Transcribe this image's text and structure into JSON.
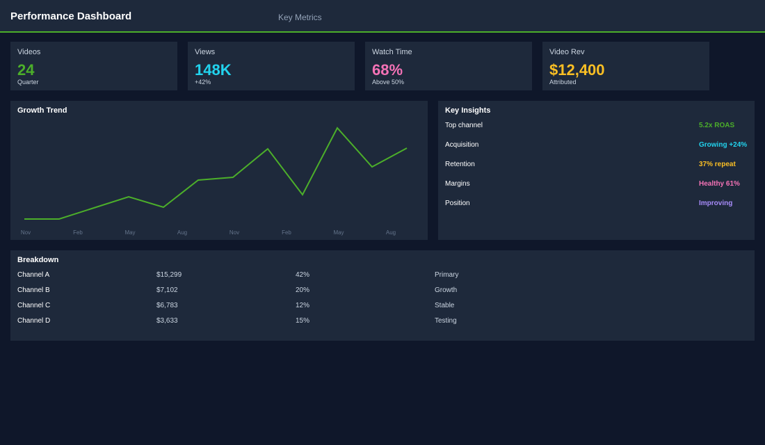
{
  "header": {
    "title": "Performance Dashboard",
    "nav": "Key Metrics"
  },
  "kpis": [
    {
      "label": "Videos",
      "value": "24",
      "sub": "Quarter",
      "color": "#4caf2a"
    },
    {
      "label": "Views",
      "value": "148K",
      "sub": "+42%",
      "color": "#22d3ee"
    },
    {
      "label": "Watch Time",
      "value": "68%",
      "sub": "Above 50%",
      "color": "#f472b6"
    },
    {
      "label": "Video Rev",
      "value": "$12,400",
      "sub": "Attributed",
      "color": "#fbbf24"
    }
  ],
  "chart_data": {
    "type": "line",
    "title": "Growth Trend",
    "color": "#4caf2a",
    "values": [
      25,
      25,
      41,
      57,
      42,
      81,
      85,
      126,
      60,
      156,
      100,
      127
    ],
    "xticks": [
      "Nov",
      "Feb",
      "May",
      "Aug",
      "Nov",
      "Feb",
      "May",
      "Aug"
    ]
  },
  "insights": {
    "title": "Key Insights",
    "items": [
      {
        "label": "Top channel",
        "value": "5.2x ROAS",
        "color": "#4caf2a"
      },
      {
        "label": "Acquisition",
        "value": "Growing +24%",
        "color": "#22d3ee"
      },
      {
        "label": "Retention",
        "value": "37% repeat",
        "color": "#fbbf24"
      },
      {
        "label": "Margins",
        "value": "Healthy 61%",
        "color": "#f472b6"
      },
      {
        "label": "Position",
        "value": "Improving",
        "color": "#a78bfa"
      }
    ]
  },
  "table": {
    "title": "Breakdown",
    "rows": [
      [
        "Channel A",
        "$15,299",
        "42%",
        "Primary"
      ],
      [
        "Channel B",
        "$7,102",
        "20%",
        "Growth"
      ],
      [
        "Channel C",
        "$6,783",
        "12%",
        "Stable"
      ],
      [
        "Channel D",
        "$3,633",
        "15%",
        "Testing"
      ]
    ]
  }
}
